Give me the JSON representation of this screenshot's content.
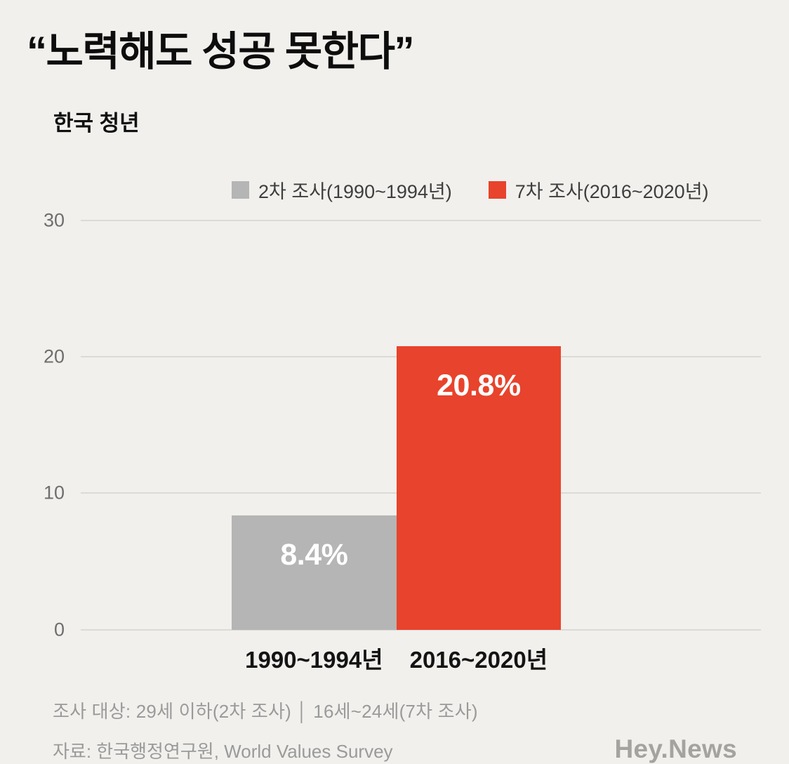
{
  "header": {
    "title": "“노력해도 성공 못한다”",
    "subtitle": "한국 청년"
  },
  "legend": [
    {
      "label": "2차 조사(1990~1994년)",
      "color": "#b5b5b5"
    },
    {
      "label": "7차 조사(2016~2020년)",
      "color": "#e8432c"
    }
  ],
  "chart_data": {
    "type": "bar",
    "title": "“노력해도 성공 못한다”",
    "subtitle": "한국 청년",
    "categories": [
      "1990~1994년",
      "2016~2020년"
    ],
    "series": [
      {
        "name": "2차 조사(1990~1994년)",
        "value": 8.4,
        "label": "8.4%",
        "color": "#b5b5b5"
      },
      {
        "name": "7차 조사(2016~2020년)",
        "value": 20.8,
        "label": "20.8%",
        "color": "#e8432c"
      }
    ],
    "ylim": [
      0,
      30
    ],
    "yticks": [
      0,
      10,
      20,
      30
    ],
    "grid": true,
    "legend_position": "top"
  },
  "footer": {
    "note": "조사 대상: 29세 이하(2차 조사) │ 16세~24세(7차 조사)",
    "source": "자료: 한국행정연구원, World Values Survey",
    "brand": "Hey.News"
  }
}
